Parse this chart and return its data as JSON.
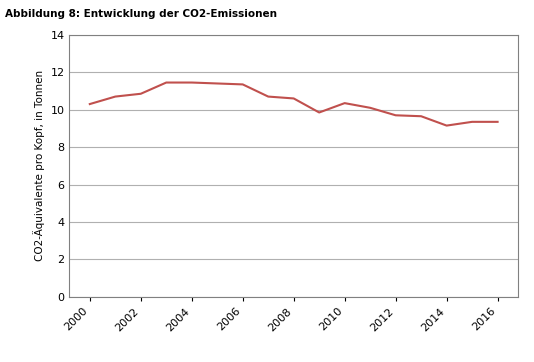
{
  "title": "Abbildung 8: Entwicklung der CO2-Emissionen",
  "ylabel": "CO2-Äquivalente pro Kopf, in Tonnen",
  "years": [
    2000,
    2001,
    2002,
    2003,
    2004,
    2005,
    2006,
    2007,
    2008,
    2009,
    2010,
    2011,
    2012,
    2013,
    2014,
    2015,
    2016
  ],
  "values": [
    10.3,
    10.7,
    10.85,
    11.45,
    11.45,
    11.4,
    11.35,
    10.7,
    10.6,
    9.85,
    10.35,
    10.1,
    9.7,
    9.65,
    9.15,
    9.35,
    9.35
  ],
  "line_color": "#c0504d",
  "line_width": 1.5,
  "ylim": [
    0,
    14
  ],
  "yticks": [
    0,
    2,
    4,
    6,
    8,
    10,
    12,
    14
  ],
  "xticks": [
    2000,
    2002,
    2004,
    2006,
    2008,
    2010,
    2012,
    2014,
    2016
  ],
  "grid_color": "#b0b0b0",
  "bg_color": "#ffffff",
  "title_fontsize": 7.5,
  "label_fontsize": 7.5,
  "tick_fontsize": 8,
  "title_bg_color": "#d9d9d9",
  "border_color": "#808080"
}
